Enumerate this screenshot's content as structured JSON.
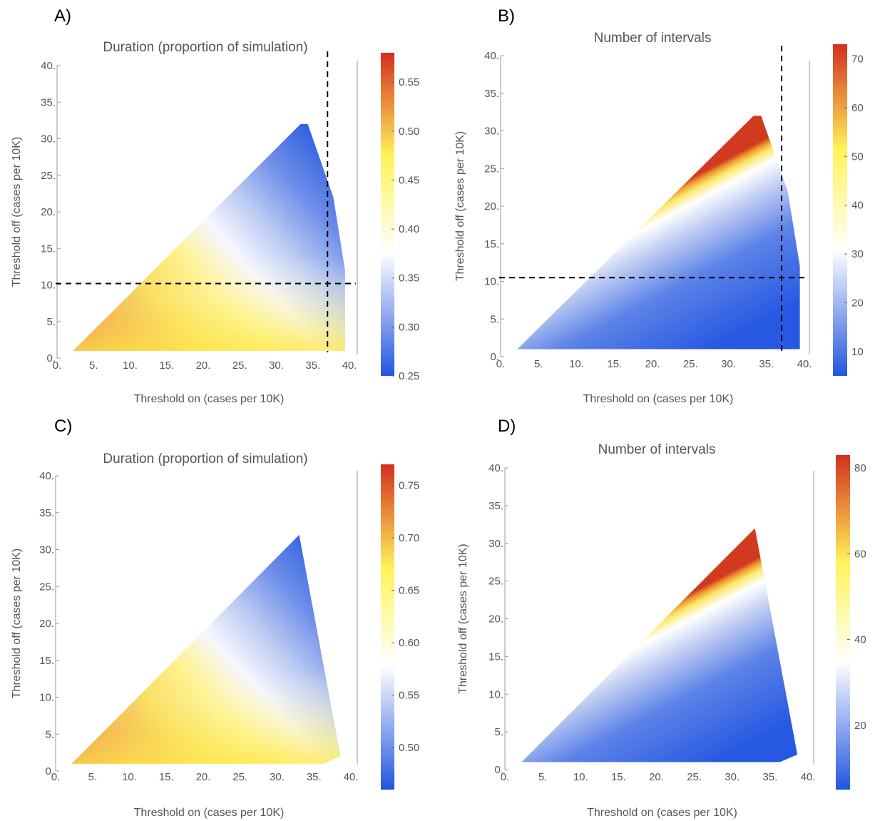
{
  "figure": {
    "panels": [
      {
        "letter": "A)",
        "title": "Duration (proportion of simulation)",
        "xlabel": "Threshold on (cases per 10K)",
        "ylabel": "Threshold off (cases per 10K)",
        "xticks": [
          "0.",
          "5.",
          "10.",
          "15.",
          "20.",
          "25.",
          "30.",
          "35.",
          "40."
        ],
        "yticks": [
          "0.",
          "5.",
          "10.",
          "15.",
          "20.",
          "25.",
          "30.",
          "35.",
          "40."
        ],
        "colorbar_ticks": [
          "0.25",
          "0.30",
          "0.35",
          "0.40",
          "0.45",
          "0.50",
          "0.55"
        ]
      },
      {
        "letter": "B)",
        "title": "Number of intervals",
        "xlabel": "Threshold on (cases per 10K)",
        "ylabel": "Threshold off (cases per 10K)",
        "xticks": [
          "0.",
          "5.",
          "10.",
          "15.",
          "20.",
          "25.",
          "30.",
          "35.",
          "40."
        ],
        "yticks": [
          "0.",
          "5.",
          "10.",
          "15.",
          "20.",
          "25.",
          "30.",
          "35.",
          "40."
        ],
        "colorbar_ticks": [
          "10",
          "20",
          "30",
          "40",
          "50",
          "60",
          "70"
        ]
      },
      {
        "letter": "C)",
        "title": "Duration (proportion of simulation)",
        "xlabel": "Threshold on (cases per 10K)",
        "ylabel": "Threshold off (cases per 10K)",
        "xticks": [
          "0.",
          "5.",
          "10.",
          "15.",
          "20.",
          "25.",
          "30.",
          "35.",
          "40."
        ],
        "yticks": [
          "0.",
          "5.",
          "10.",
          "15.",
          "20.",
          "25.",
          "30.",
          "35.",
          "40."
        ],
        "colorbar_ticks": [
          "0.50",
          "0.55",
          "0.60",
          "0.65",
          "0.70",
          "0.75"
        ]
      },
      {
        "letter": "D)",
        "title": "Number of intervals",
        "xlabel": "Threshold on (cases per 10K)",
        "ylabel": "Threshold off (cases per 10K)",
        "xticks": [
          "0.",
          "5.",
          "10.",
          "15.",
          "20.",
          "25.",
          "30.",
          "35.",
          "40."
        ],
        "yticks": [
          "0.",
          "5.",
          "10.",
          "15.",
          "20.",
          "25.",
          "30.",
          "35.",
          "40."
        ],
        "colorbar_ticks": [
          "20",
          "40",
          "60",
          "80"
        ]
      }
    ]
  },
  "chart_data": [
    {
      "type": "heatmap",
      "title": "Duration (proportion of simulation)",
      "xlabel": "Threshold on (cases per 10K)",
      "ylabel": "Threshold off (cases per 10K)",
      "xlim": [
        0,
        41
      ],
      "ylim": [
        0,
        41
      ],
      "colorbar": {
        "range": [
          0.25,
          0.58
        ],
        "ticks": [
          0.25,
          0.3,
          0.35,
          0.4,
          0.45,
          0.5,
          0.55
        ],
        "colors": [
          "#2255e0",
          "#ffffff",
          "#fff35a",
          "#d42f1e"
        ]
      },
      "region": [
        [
          2.2,
          1
        ],
        [
          33.3,
          32
        ],
        [
          34.3,
          32
        ],
        [
          37.8,
          22
        ],
        [
          39.4,
          12
        ],
        [
          39.4,
          1
        ]
      ],
      "color_gradient": {
        "max_corner": [
          2.2,
          1
        ],
        "min_corner": [
          33.3,
          32
        ],
        "mid_value": 0.37
      },
      "reference_lines": {
        "x": 37,
        "y": 10.2,
        "style": "dashed"
      }
    },
    {
      "type": "heatmap",
      "title": "Number of intervals",
      "xlabel": "Threshold on (cases per 10K)",
      "ylabel": "Threshold off (cases per 10K)",
      "xlim": [
        0,
        41
      ],
      "ylim": [
        0,
        41
      ],
      "colorbar": {
        "range": [
          5,
          73
        ],
        "ticks": [
          10,
          20,
          30,
          40,
          50,
          60,
          70
        ],
        "colors": [
          "#2255e0",
          "#ffffff",
          "#fff35a",
          "#d42f1e"
        ]
      },
      "region": [
        [
          2.2,
          1
        ],
        [
          33.3,
          32
        ],
        [
          34.3,
          32
        ],
        [
          37.8,
          22
        ],
        [
          39.4,
          12
        ],
        [
          39.4,
          1
        ]
      ],
      "color_gradient": {
        "max_along": "diagonal",
        "min_corner": [
          39.4,
          1
        ]
      },
      "reference_lines": {
        "x": 37,
        "y": 10.5,
        "style": "dashed"
      }
    },
    {
      "type": "heatmap",
      "title": "Duration (proportion of simulation)",
      "xlabel": "Threshold on (cases per 10K)",
      "ylabel": "Threshold off (cases per 10K)",
      "xlim": [
        0,
        41
      ],
      "ylim": [
        0,
        41
      ],
      "colorbar": {
        "range": [
          0.46,
          0.77
        ],
        "ticks": [
          0.5,
          0.55,
          0.6,
          0.65,
          0.7,
          0.75
        ],
        "colors": [
          "#2255e0",
          "#ffffff",
          "#fff35a",
          "#d42f1e"
        ]
      },
      "region": [
        [
          2.2,
          1
        ],
        [
          33,
          32
        ],
        [
          38.6,
          2
        ],
        [
          36.3,
          1
        ]
      ],
      "color_gradient": {
        "max_corner": [
          2.2,
          1
        ],
        "min_corner": [
          33,
          32
        ]
      }
    },
    {
      "type": "heatmap",
      "title": "Number of intervals",
      "xlabel": "Threshold on (cases per 10K)",
      "ylabel": "Threshold off (cases per 10K)",
      "xlim": [
        0,
        41
      ],
      "ylim": [
        0,
        41
      ],
      "colorbar": {
        "range": [
          5,
          83
        ],
        "ticks": [
          20,
          40,
          60,
          80
        ],
        "colors": [
          "#2255e0",
          "#ffffff",
          "#fff35a",
          "#d42f1e"
        ]
      },
      "region": [
        [
          2.2,
          1
        ],
        [
          33,
          32
        ],
        [
          38.6,
          2
        ],
        [
          36.3,
          1
        ]
      ],
      "color_gradient": {
        "max_along": "diagonal",
        "min_corner": [
          38.6,
          2
        ]
      }
    }
  ]
}
